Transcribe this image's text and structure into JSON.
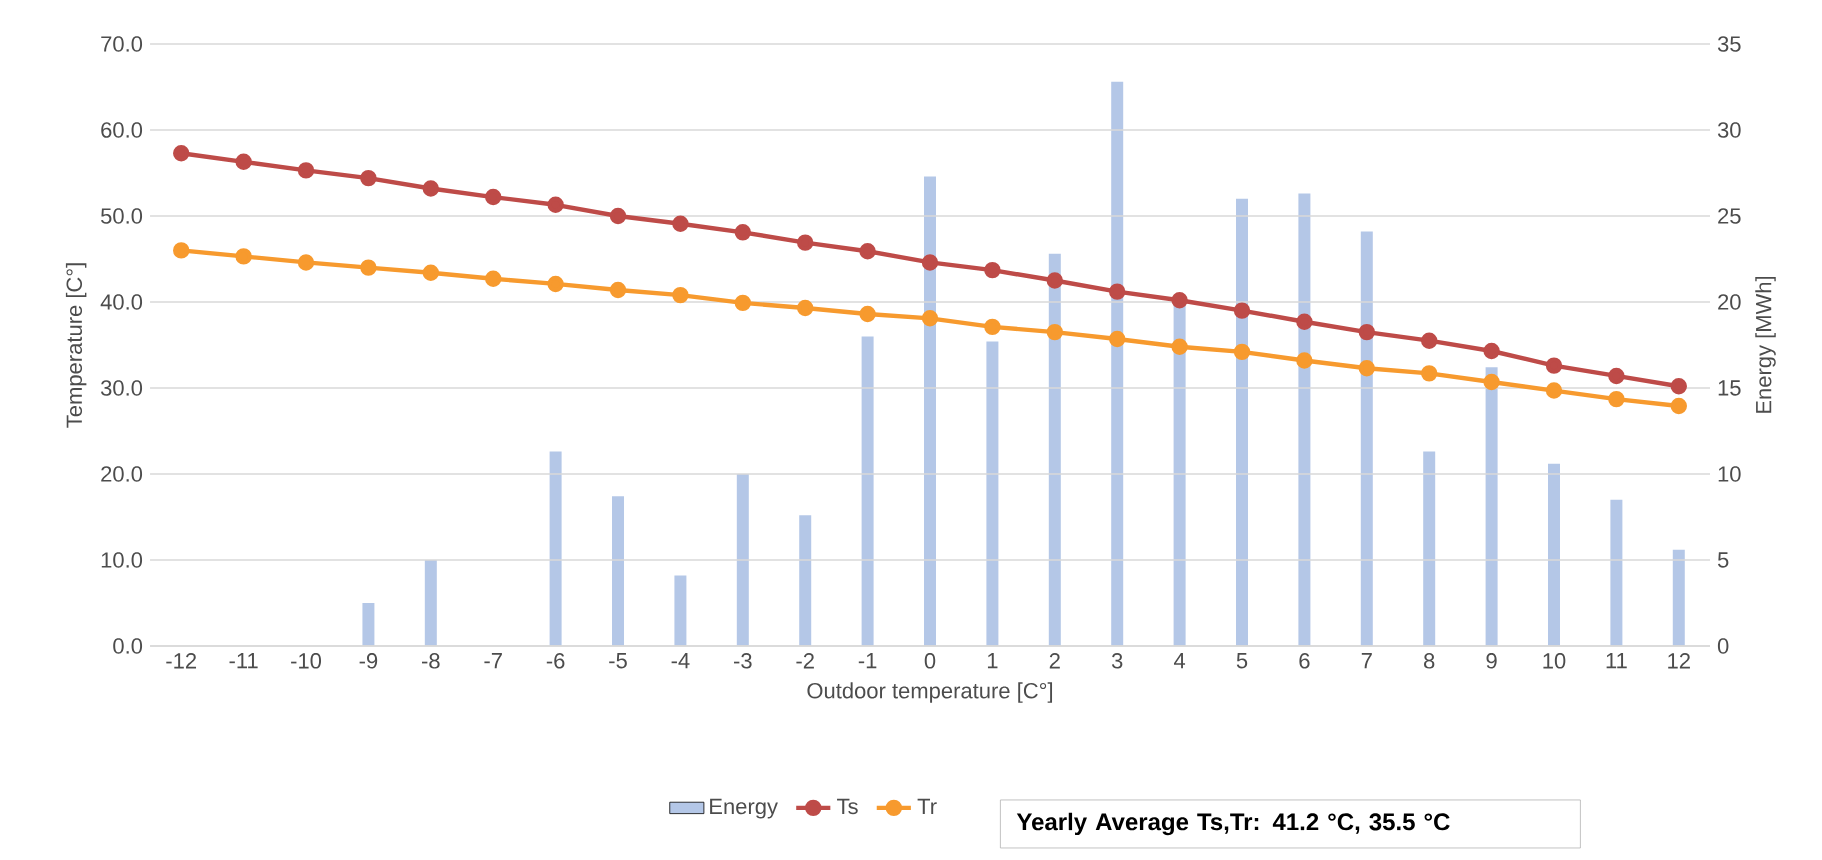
{
  "chart_data": {
    "type": "line",
    "xlabel": "Outdoor temperature  [C°]",
    "ylabel": "Temperature [C°]",
    "y2label": "Energy  [MWh]",
    "categories": [
      "-12",
      "-11",
      "-10",
      "-9",
      "-8",
      "-7",
      "-6",
      "-5",
      "-4",
      "-3",
      "-2",
      "-1",
      "0",
      "1",
      "2",
      "3",
      "4",
      "5",
      "6",
      "7",
      "8",
      "9",
      "10",
      "11",
      "12"
    ],
    "series": [
      {
        "name": "Energy",
        "type": "bar",
        "axis": "y2",
        "color": "#b4c7e7",
        "values": [
          0,
          0,
          0,
          2.5,
          5.0,
          0,
          11.3,
          8.7,
          4.1,
          10.0,
          7.6,
          18.0,
          27.3,
          17.7,
          22.8,
          32.8,
          20.0,
          26.0,
          26.3,
          24.1,
          11.3,
          16.2,
          10.6,
          8.5,
          5.6
        ]
      },
      {
        "name": "Ts",
        "color": "#be4b48",
        "values": [
          57.3,
          56.3,
          55.3,
          54.4,
          53.2,
          52.2,
          51.3,
          50.0,
          49.1,
          48.1,
          46.9,
          45.9,
          44.6,
          43.7,
          42.5,
          41.2,
          40.2,
          39.0,
          37.7,
          36.5,
          35.5,
          34.3,
          32.6,
          31.4,
          30.2
        ]
      },
      {
        "name": "Tr",
        "color": "#f79a2e",
        "values": [
          46.0,
          45.3,
          44.6,
          44.0,
          43.4,
          42.7,
          42.1,
          41.4,
          40.8,
          39.9,
          39.3,
          38.6,
          38.1,
          37.1,
          36.5,
          35.7,
          34.8,
          34.2,
          33.2,
          32.3,
          31.7,
          30.7,
          29.7,
          28.7,
          27.9
        ]
      }
    ],
    "ylim": [
      0,
      70
    ],
    "yticks": [
      {
        "value": 0,
        "label": "0.0"
      },
      {
        "value": 10,
        "label": "10.0"
      },
      {
        "value": 20,
        "label": "20.0"
      },
      {
        "value": 30,
        "label": "30.0"
      },
      {
        "value": 40,
        "label": "40.0"
      },
      {
        "value": 50,
        "label": "50.0"
      },
      {
        "value": 60,
        "label": "60.0"
      },
      {
        "value": 70,
        "label": "70.0"
      }
    ],
    "y2lim": [
      0,
      35
    ],
    "y2ticks": [
      0,
      5,
      10,
      15,
      20,
      25,
      30,
      35
    ],
    "grid": "y",
    "legend": "bottom",
    "marker": "circle",
    "line_style": "solid",
    "annotations": [
      "**Yearly Average Ts,Tr: 41.2 °C, 35.5 °C**"
    ]
  }
}
